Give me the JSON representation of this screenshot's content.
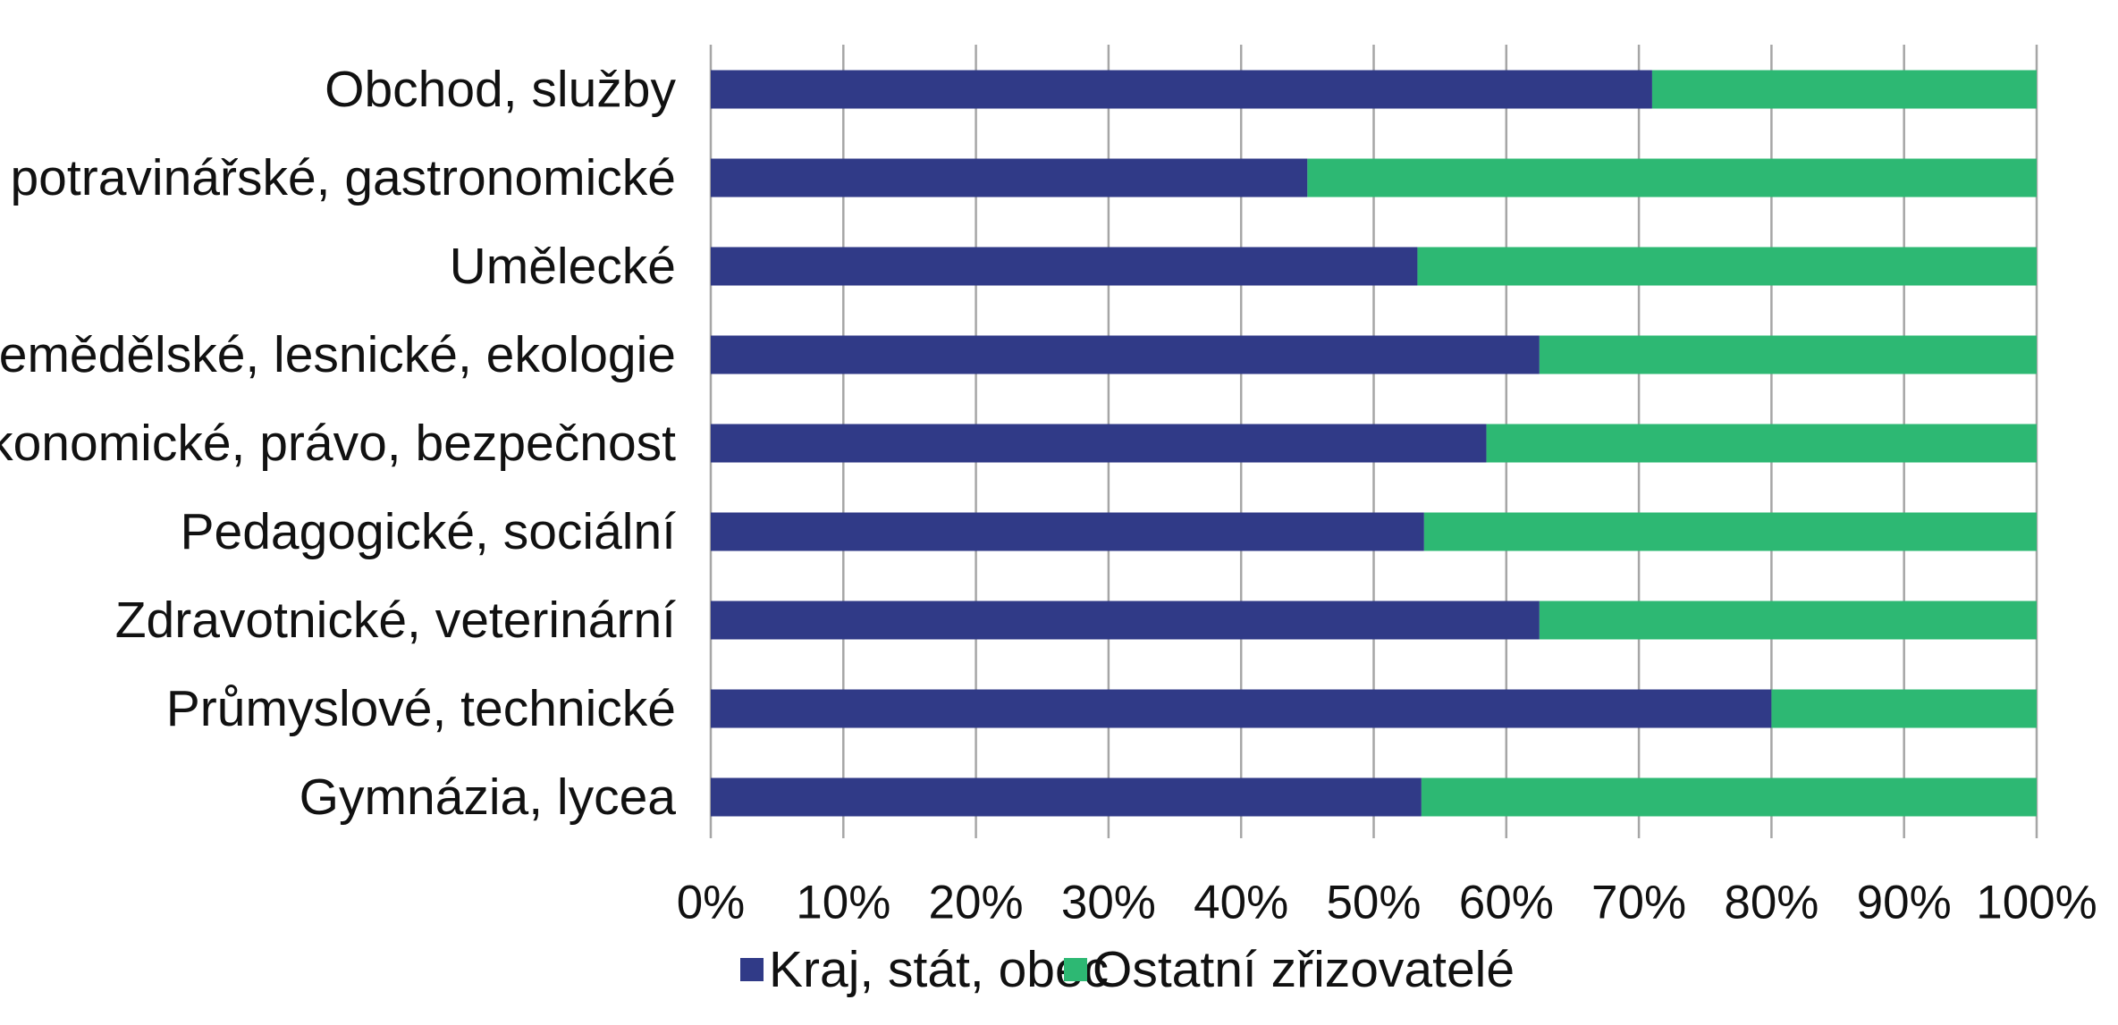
{
  "chart_data": {
    "type": "bar",
    "orientation": "horizontal",
    "stacked": "percent",
    "categories": [
      "Obchod, služby",
      "Hotelové, potravinářské, gastronomické",
      "Umělecké",
      "Zemědělské, lesnické, ekologie",
      "Ekonomické, právo, bezpečnost",
      "Pedagogické, sociální",
      "Zdravotnické, veterinární",
      "Průmyslové, technické",
      "Gymnázia, lycea"
    ],
    "series": [
      {
        "name": "Kraj, stát, obec",
        "color": "#303a87",
        "values": [
          71,
          45,
          53.3,
          62.5,
          58.5,
          53.8,
          62.5,
          80,
          53.6
        ]
      },
      {
        "name": "Ostatní zřizovatelé",
        "color": "#2db873",
        "values": [
          29,
          55,
          46.7,
          37.5,
          41.5,
          46.2,
          37.5,
          20,
          46.4
        ]
      }
    ],
    "xlim": [
      0,
      100
    ],
    "x_ticks": [
      "0%",
      "10%",
      "20%",
      "30%",
      "40%",
      "50%",
      "60%",
      "70%",
      "80%",
      "90%",
      "100%"
    ],
    "title": "",
    "xlabel": "",
    "ylabel": "",
    "grid": "vertical",
    "legend_position": "bottom"
  }
}
